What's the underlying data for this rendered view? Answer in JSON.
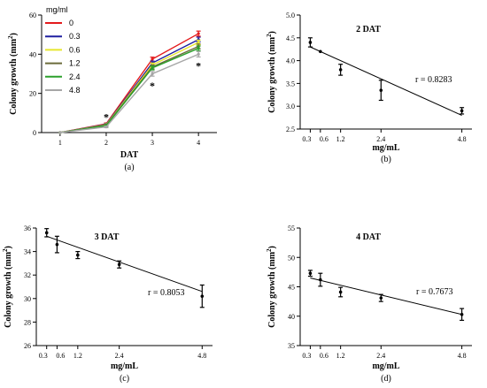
{
  "chart_data": [
    {
      "panel": "a",
      "type": "line",
      "caption": "(a)",
      "title": "",
      "xlabel": "DAT",
      "ylabel": "Colony growth (mm",
      "ylabel_sup": "2",
      "ylabel_close": ")",
      "legend_title": "mg/ml",
      "legend_position": "top-left",
      "x": [
        1,
        2,
        3,
        4
      ],
      "xlim": [
        0.6,
        4.4
      ],
      "ylim": [
        0,
        60
      ],
      "yticks": [
        0,
        20,
        40,
        60
      ],
      "series": [
        {
          "name": "0",
          "color": "#e31a1c",
          "values": [
            0,
            4.5,
            37.5,
            50.5
          ],
          "err": [
            0,
            0.4,
            1.0,
            1.3
          ]
        },
        {
          "name": "0.3",
          "color": "#1f1fa0",
          "values": [
            0,
            4.2,
            35.5,
            47.5
          ],
          "err": [
            0,
            0.4,
            1.0,
            1.2
          ]
        },
        {
          "name": "0.6",
          "color": "#e6e62e",
          "values": [
            0,
            4.0,
            34.5,
            46.0
          ],
          "err": [
            0,
            0.4,
            1.0,
            1.2
          ]
        },
        {
          "name": "1.2",
          "color": "#6b6b3a",
          "values": [
            0,
            3.8,
            33.5,
            44.0
          ],
          "err": [
            0,
            0.4,
            1.0,
            1.2
          ]
        },
        {
          "name": "2.4",
          "color": "#2ca02c",
          "values": [
            0,
            3.5,
            33.0,
            43.0
          ],
          "err": [
            0,
            0.4,
            1.0,
            1.2
          ]
        },
        {
          "name": "4.8",
          "color": "#a6a6a6",
          "values": [
            0,
            2.9,
            30.0,
            40.0
          ],
          "err": [
            0,
            0.4,
            1.2,
            1.4
          ]
        }
      ],
      "annotations": [
        {
          "text": "*",
          "x": 2,
          "y": 8
        },
        {
          "text": "*",
          "x": 3,
          "y": 24
        },
        {
          "text": "*",
          "x": 4,
          "y": 34
        }
      ]
    },
    {
      "panel": "b",
      "type": "scatter",
      "caption": "(b)",
      "title": "2 DAT",
      "xlabel": "mg/mL",
      "ylabel": "Colony growth (mm",
      "ylabel_sup": "2",
      "ylabel_close": ")",
      "r_label": "r = 0.8283",
      "xticks": [
        "0.3",
        "0.6",
        "1.2",
        "2.4",
        "4.8"
      ],
      "xtick_values": [
        0.3,
        0.6,
        1.2,
        2.4,
        4.8
      ],
      "xlim": [
        0,
        5.1
      ],
      "ylim": [
        2.5,
        5.0
      ],
      "yticks": [
        "2.5",
        "3.0",
        "3.5",
        "4.0",
        "4.5",
        "5.0"
      ],
      "ytick_values": [
        2.5,
        3.0,
        3.5,
        4.0,
        4.5,
        5.0
      ],
      "points": [
        {
          "x": 0.3,
          "y": 4.4,
          "err": 0.1
        },
        {
          "x": 0.6,
          "y": 4.2,
          "err": 0.0
        },
        {
          "x": 1.2,
          "y": 3.8,
          "err": 0.12
        },
        {
          "x": 2.4,
          "y": 3.35,
          "err": 0.22
        },
        {
          "x": 4.8,
          "y": 2.9,
          "err": 0.07
        }
      ],
      "fit": {
        "x": [
          0.3,
          4.8
        ],
        "y": [
          4.3,
          2.8
        ]
      }
    },
    {
      "panel": "c",
      "type": "scatter",
      "caption": "(c)",
      "title": "3 DAT",
      "xlabel": "mg/mL",
      "ylabel": "Colony growth (mm",
      "ylabel_sup": "2",
      "ylabel_close": ")",
      "r_label": "r = 0.8053",
      "xticks": [
        "0.3",
        "0.6",
        "1.2",
        "2.4",
        "4.8"
      ],
      "xtick_values": [
        0.3,
        0.6,
        1.2,
        2.4,
        4.8
      ],
      "xlim": [
        0,
        5.1
      ],
      "ylim": [
        26,
        36
      ],
      "yticks": [
        "26",
        "28",
        "30",
        "32",
        "34",
        "36"
      ],
      "ytick_values": [
        26,
        28,
        30,
        32,
        34,
        36
      ],
      "points": [
        {
          "x": 0.3,
          "y": 35.6,
          "err": 0.35
        },
        {
          "x": 0.6,
          "y": 34.6,
          "err": 0.7
        },
        {
          "x": 1.2,
          "y": 33.7,
          "err": 0.3
        },
        {
          "x": 2.4,
          "y": 32.9,
          "err": 0.3
        },
        {
          "x": 4.8,
          "y": 30.2,
          "err": 0.95
        }
      ],
      "fit": {
        "x": [
          0.3,
          4.8
        ],
        "y": [
          35.3,
          30.6
        ]
      }
    },
    {
      "panel": "d",
      "type": "scatter",
      "caption": "(d)",
      "title": "4 DAT",
      "xlabel": "mg/mL",
      "ylabel": "Colony growth (mm",
      "ylabel_sup": "2",
      "ylabel_close": ")",
      "r_label": "r = 0.7673",
      "xticks": [
        "0.3",
        "0.6",
        "1.2",
        "2.4",
        "4.8"
      ],
      "xtick_values": [
        0.3,
        0.6,
        1.2,
        2.4,
        4.8
      ],
      "xlim": [
        0,
        5.1
      ],
      "ylim": [
        35,
        55
      ],
      "yticks": [
        "35",
        "40",
        "45",
        "50",
        "55"
      ],
      "ytick_values": [
        35,
        40,
        45,
        50,
        55
      ],
      "points": [
        {
          "x": 0.3,
          "y": 47.3,
          "err": 0.5
        },
        {
          "x": 0.6,
          "y": 46.2,
          "err": 1.1
        },
        {
          "x": 1.2,
          "y": 44.1,
          "err": 0.8
        },
        {
          "x": 2.4,
          "y": 43.1,
          "err": 0.6
        },
        {
          "x": 4.8,
          "y": 40.3,
          "err": 1.0
        }
      ],
      "fit": {
        "x": [
          0.3,
          4.8
        ],
        "y": [
          46.5,
          40.3
        ]
      }
    }
  ]
}
